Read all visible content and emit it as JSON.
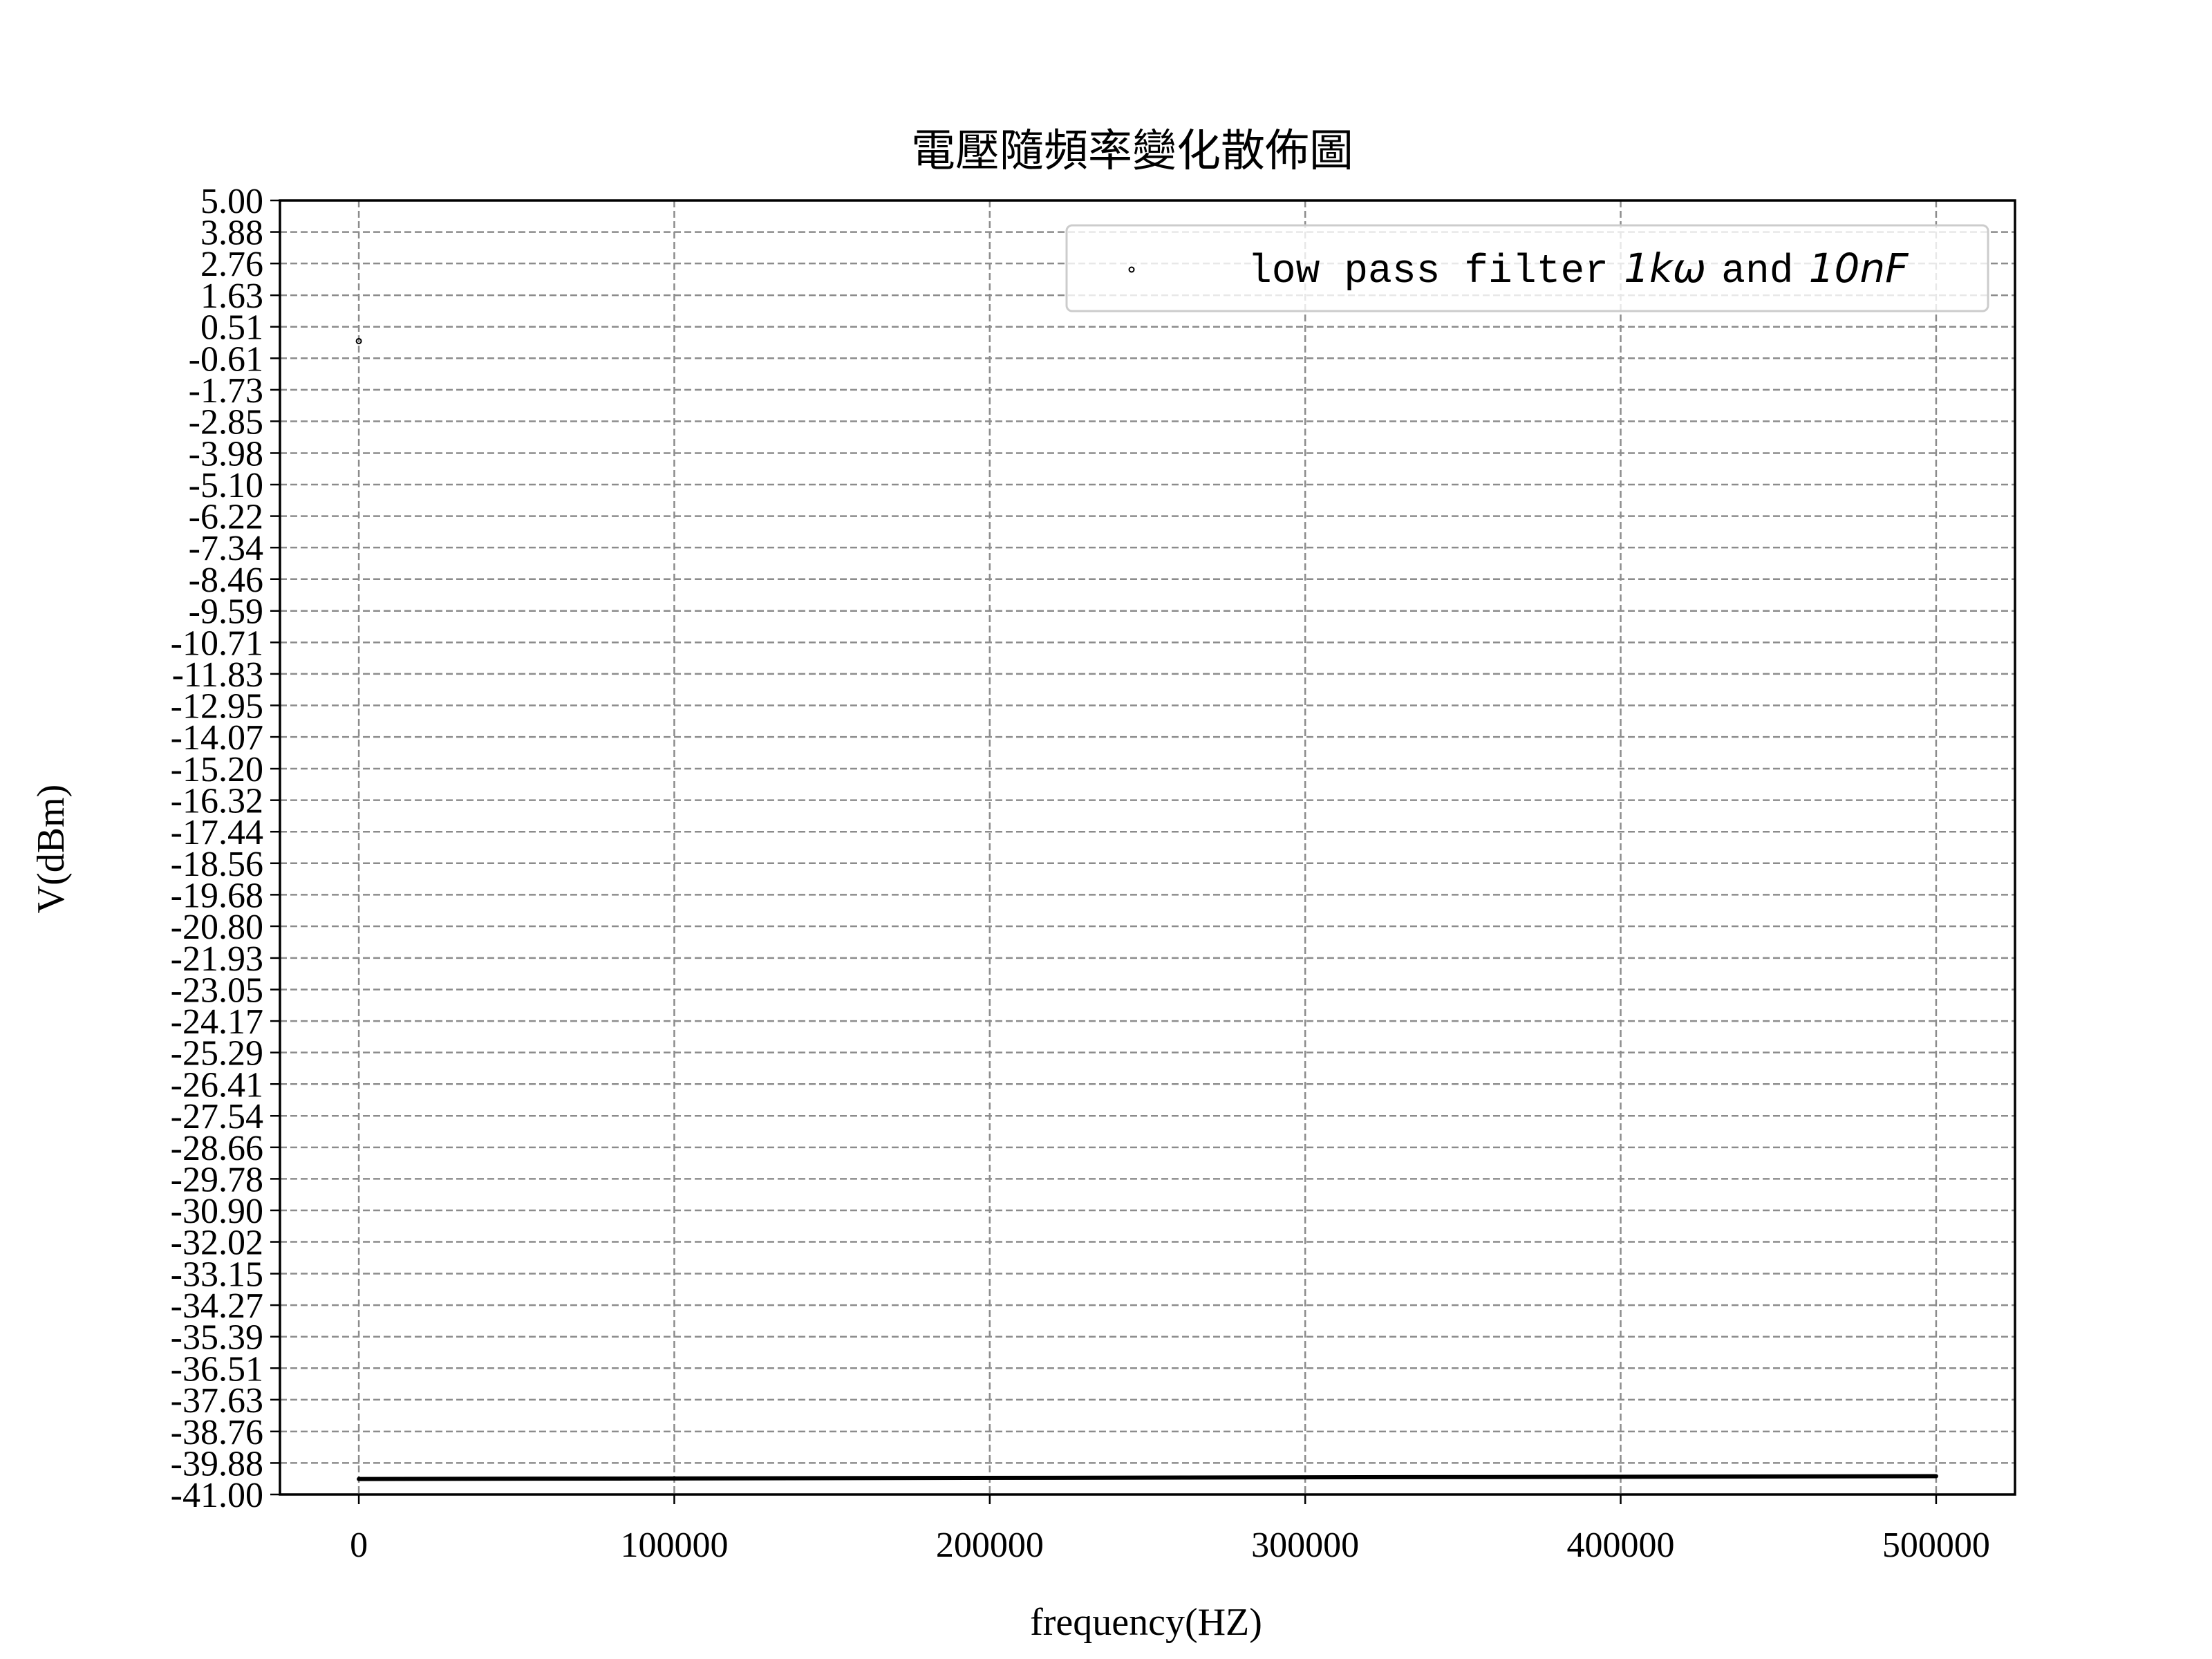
{
  "chart_data": {
    "type": "scatter",
    "title": "電壓隨頻率變化散佈圖",
    "xlabel": "frequency(HZ)",
    "ylabel": "V(dBm)",
    "xlim": [
      -25000,
      525000
    ],
    "ylim": [
      -41.0,
      5.0
    ],
    "x_ticks": [
      0,
      100000,
      200000,
      300000,
      400000,
      500000
    ],
    "x_tick_labels": [
      "0",
      "100000",
      "200000",
      "300000",
      "400000",
      "500000"
    ],
    "y_ticks": [
      5.0,
      3.88,
      2.76,
      1.63,
      0.51,
      -0.61,
      -1.73,
      -2.85,
      -3.98,
      -5.1,
      -6.22,
      -7.34,
      -8.46,
      -9.59,
      -10.71,
      -11.83,
      -12.95,
      -14.07,
      -15.2,
      -16.32,
      -17.44,
      -18.56,
      -19.68,
      -20.8,
      -21.93,
      -23.05,
      -24.17,
      -25.29,
      -26.41,
      -27.54,
      -28.66,
      -29.78,
      -30.9,
      -32.02,
      -33.15,
      -34.27,
      -35.39,
      -36.51,
      -37.63,
      -38.76,
      -39.88,
      -41.0
    ],
    "y_tick_labels": [
      "5.00",
      "3.88",
      "2.76",
      "1.63",
      "0.51",
      "-0.61",
      "-1.73",
      "-2.85",
      "-3.98",
      "-5.10",
      "-6.22",
      "-7.34",
      "-8.46",
      "-9.59",
      "-10.71",
      "-11.83",
      "-12.95",
      "-14.07",
      "-15.20",
      "-16.32",
      "-17.44",
      "-18.56",
      "-19.68",
      "-20.80",
      "-21.93",
      "-23.05",
      "-24.17",
      "-25.29",
      "-26.41",
      "-27.54",
      "-28.66",
      "-29.78",
      "-30.90",
      "-32.02",
      "-33.15",
      "-34.27",
      "-35.39",
      "-36.51",
      "-37.63",
      "-38.76",
      "-39.88",
      "-41.00"
    ],
    "grid": true,
    "legend_location": "upper right",
    "series": [
      {
        "name": "low pass filter 1kω and 10nF",
        "legend_text": "low pass filter",
        "legend_math_1": "1kω",
        "legend_and": "and",
        "legend_math_2": "10nF",
        "color": "#000000",
        "marker": "point",
        "outlier": {
          "x": 0,
          "y": 0.0
        },
        "dense_line": {
          "x_start": 0,
          "x_end": 500000,
          "y_start": -40.45,
          "y_end": -40.35
        }
      }
    ]
  }
}
